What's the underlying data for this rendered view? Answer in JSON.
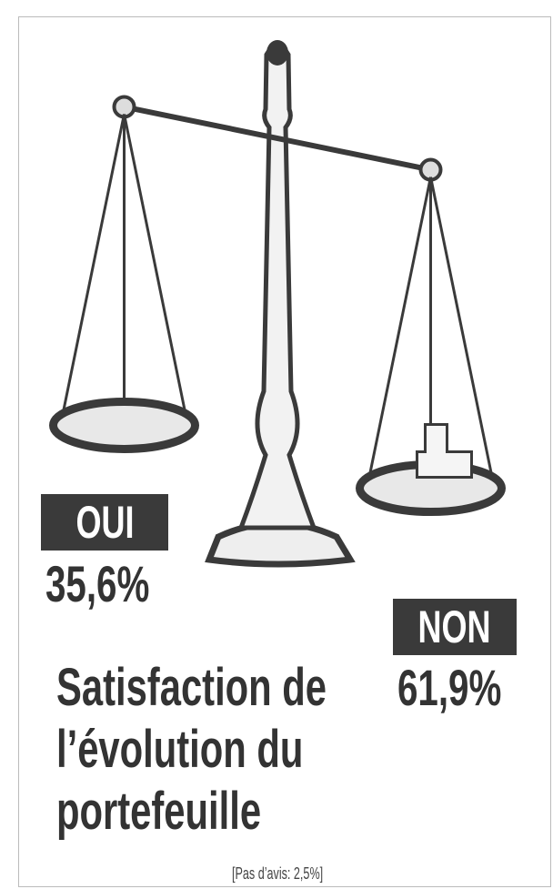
{
  "chart_data": {
    "type": "scale",
    "categories": [
      "OUI",
      "NON"
    ],
    "values": [
      35.6,
      61.9
    ],
    "value_labels": [
      "35,6%",
      "61,9%"
    ],
    "title": "Satisfaction de l’évolution du portefeuille",
    "note": "[Pas d’avis: 2,5%]",
    "color": "#3a3a3a"
  }
}
